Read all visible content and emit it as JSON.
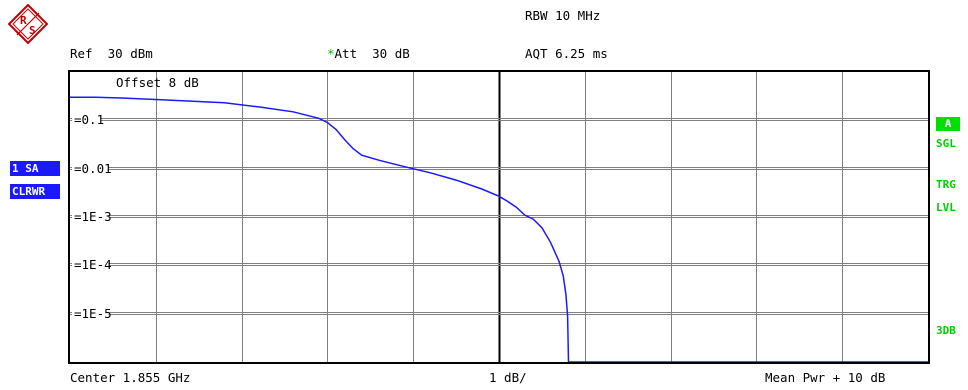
{
  "header": {
    "logo_letters": "RS",
    "rbw": "RBW 10 MHz",
    "ref": "Ref  30 dBm",
    "att_star": "*",
    "att": "Att  30 dB",
    "aqt": "AQT 6.25 ms"
  },
  "left_badges": {
    "trace": "1 SA",
    "mode": "CLRWR"
  },
  "right_badges": {
    "a": "A",
    "sgl": "SGL",
    "trg": "TRG",
    "lvl": "LVL",
    "threedb": "3DB"
  },
  "footer": {
    "center": "Center 1.855 GHz",
    "scale": "1 dB/",
    "mean": "Mean Pwr + 10 dB"
  },
  "colors": {
    "trace": "#1a1aff",
    "grid": "#808080",
    "accent_green": "#00d000",
    "badge_blue": "#1a1aff"
  },
  "chart_data": {
    "type": "line",
    "annotation": "Offset  8 dB",
    "y_scale": "log",
    "ylim": [
      1e-06,
      1
    ],
    "y_ticks": [
      {
        "value": 0.1,
        "label": "0.1"
      },
      {
        "value": 0.01,
        "label": "0.01"
      },
      {
        "value": 0.001,
        "label": "1E-3"
      },
      {
        "value": 0.0001,
        "label": "1E-4"
      },
      {
        "value": 1e-05,
        "label": "1E-5"
      }
    ],
    "x_divisions": 10,
    "x_unit": "dB",
    "xlim": [
      0,
      10
    ],
    "grid": true,
    "series": [
      {
        "color": "#1a1aff",
        "points": [
          [
            0.0,
            0.3
          ],
          [
            0.3,
            0.3
          ],
          [
            0.6,
            0.29
          ],
          [
            1.0,
            0.27
          ],
          [
            1.4,
            0.25
          ],
          [
            1.8,
            0.23
          ],
          [
            2.2,
            0.19
          ],
          [
            2.6,
            0.15
          ],
          [
            2.9,
            0.11
          ],
          [
            3.0,
            0.09
          ],
          [
            3.1,
            0.065
          ],
          [
            3.2,
            0.04
          ],
          [
            3.3,
            0.026
          ],
          [
            3.4,
            0.019
          ],
          [
            3.6,
            0.015
          ],
          [
            3.9,
            0.011
          ],
          [
            4.2,
            0.0082
          ],
          [
            4.5,
            0.0058
          ],
          [
            4.8,
            0.0038
          ],
          [
            5.0,
            0.0027
          ],
          [
            5.1,
            0.0021
          ],
          [
            5.2,
            0.0016
          ],
          [
            5.3,
            0.0011
          ],
          [
            5.4,
            0.0009
          ],
          [
            5.5,
            0.0006
          ],
          [
            5.6,
            0.0003
          ],
          [
            5.7,
            0.00012
          ],
          [
            5.75,
            6e-05
          ],
          [
            5.78,
            2.5e-05
          ],
          [
            5.8,
            9e-06
          ],
          [
            5.81,
            1e-06
          ],
          [
            10.0,
            1e-06
          ]
        ]
      }
    ]
  }
}
